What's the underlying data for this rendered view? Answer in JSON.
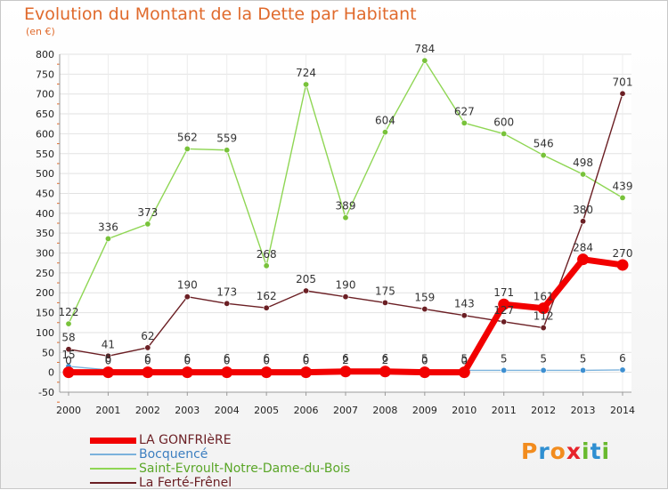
{
  "header": {
    "title": "Evolution du Montant de la Dette par Habitant",
    "unit": "(en €)"
  },
  "logo": {
    "text": "Proxiti",
    "colors": [
      "#f28c1e",
      "#2f8fd1",
      "#f28c1e",
      "#e7232b",
      "#68b92e",
      "#2f8fd1",
      "#68b92e"
    ]
  },
  "chart_data": {
    "type": "line",
    "x": [
      2000,
      2001,
      2002,
      2003,
      2004,
      2005,
      2006,
      2007,
      2008,
      2009,
      2010,
      2011,
      2012,
      2013,
      2014
    ],
    "ylim": [
      -50,
      800
    ],
    "yticks": [
      -50,
      0,
      50,
      100,
      150,
      200,
      250,
      300,
      350,
      400,
      450,
      500,
      550,
      600,
      650,
      700,
      750,
      800
    ],
    "grid": true,
    "legend_position": "bottom-left",
    "series": [
      {
        "name": "Saint-Evroult-Notre-Dame-du-Bois",
        "color": "#8fd654",
        "point_color": "#78c23a",
        "values": [
          122,
          336,
          373,
          562,
          559,
          268,
          724,
          389,
          604,
          784,
          627,
          600,
          546,
          498,
          439
        ],
        "labels": [
          "122",
          "336",
          "373",
          "562",
          "559",
          "268",
          "724",
          "389",
          "604",
          "784",
          "627",
          "600",
          "546",
          "498",
          "439"
        ]
      },
      {
        "name": "La Ferté-Frênel",
        "color": "#6b1f24",
        "point_color": "#6b1f24",
        "values": [
          58,
          41,
          62,
          190,
          173,
          162,
          205,
          190,
          175,
          159,
          143,
          127,
          112,
          380,
          701
        ],
        "labels": [
          "58",
          "41",
          "62",
          "190",
          "173",
          "162",
          "205",
          "190",
          "175",
          "159",
          "143",
          "127",
          "112",
          "380",
          "701"
        ]
      },
      {
        "name": "Bocquencé",
        "color": "#7bb2dc",
        "point_color": "#3d8fd1",
        "values": [
          15,
          6,
          6,
          6,
          6,
          6,
          6,
          6,
          6,
          5,
          5,
          5,
          5,
          5,
          6
        ],
        "labels": [
          "15",
          "6",
          "6",
          "6",
          "6",
          "6",
          "6",
          "6",
          "6",
          "5",
          "5",
          "5",
          "5",
          "5",
          "6"
        ]
      },
      {
        "name": "LA GONFRIèRE",
        "color": "#f20000",
        "point_color": "#f20000",
        "values": [
          0,
          0,
          0,
          0,
          0,
          0,
          0,
          2,
          2,
          0,
          0,
          171,
          161,
          284,
          270
        ],
        "labels": [
          "0",
          "0",
          "0",
          "0",
          "0",
          "0",
          "0",
          "2",
          "2",
          "0",
          "0",
          "171",
          "161",
          "284",
          "270"
        ]
      }
    ],
    "legend": [
      {
        "name": "LA GONFRIèRE",
        "color": "#f20000",
        "text_color": "#6b1f24"
      },
      {
        "name": "Bocquencé",
        "color": "#7bb2dc",
        "text_color": "#3d7fc0"
      },
      {
        "name": "Saint-Evroult-Notre-Dame-du-Bois",
        "color": "#8fd654",
        "text_color": "#5aa628"
      },
      {
        "name": "La Ferté-Frênel",
        "color": "#6b1f24",
        "text_color": "#6b1f24"
      }
    ]
  }
}
